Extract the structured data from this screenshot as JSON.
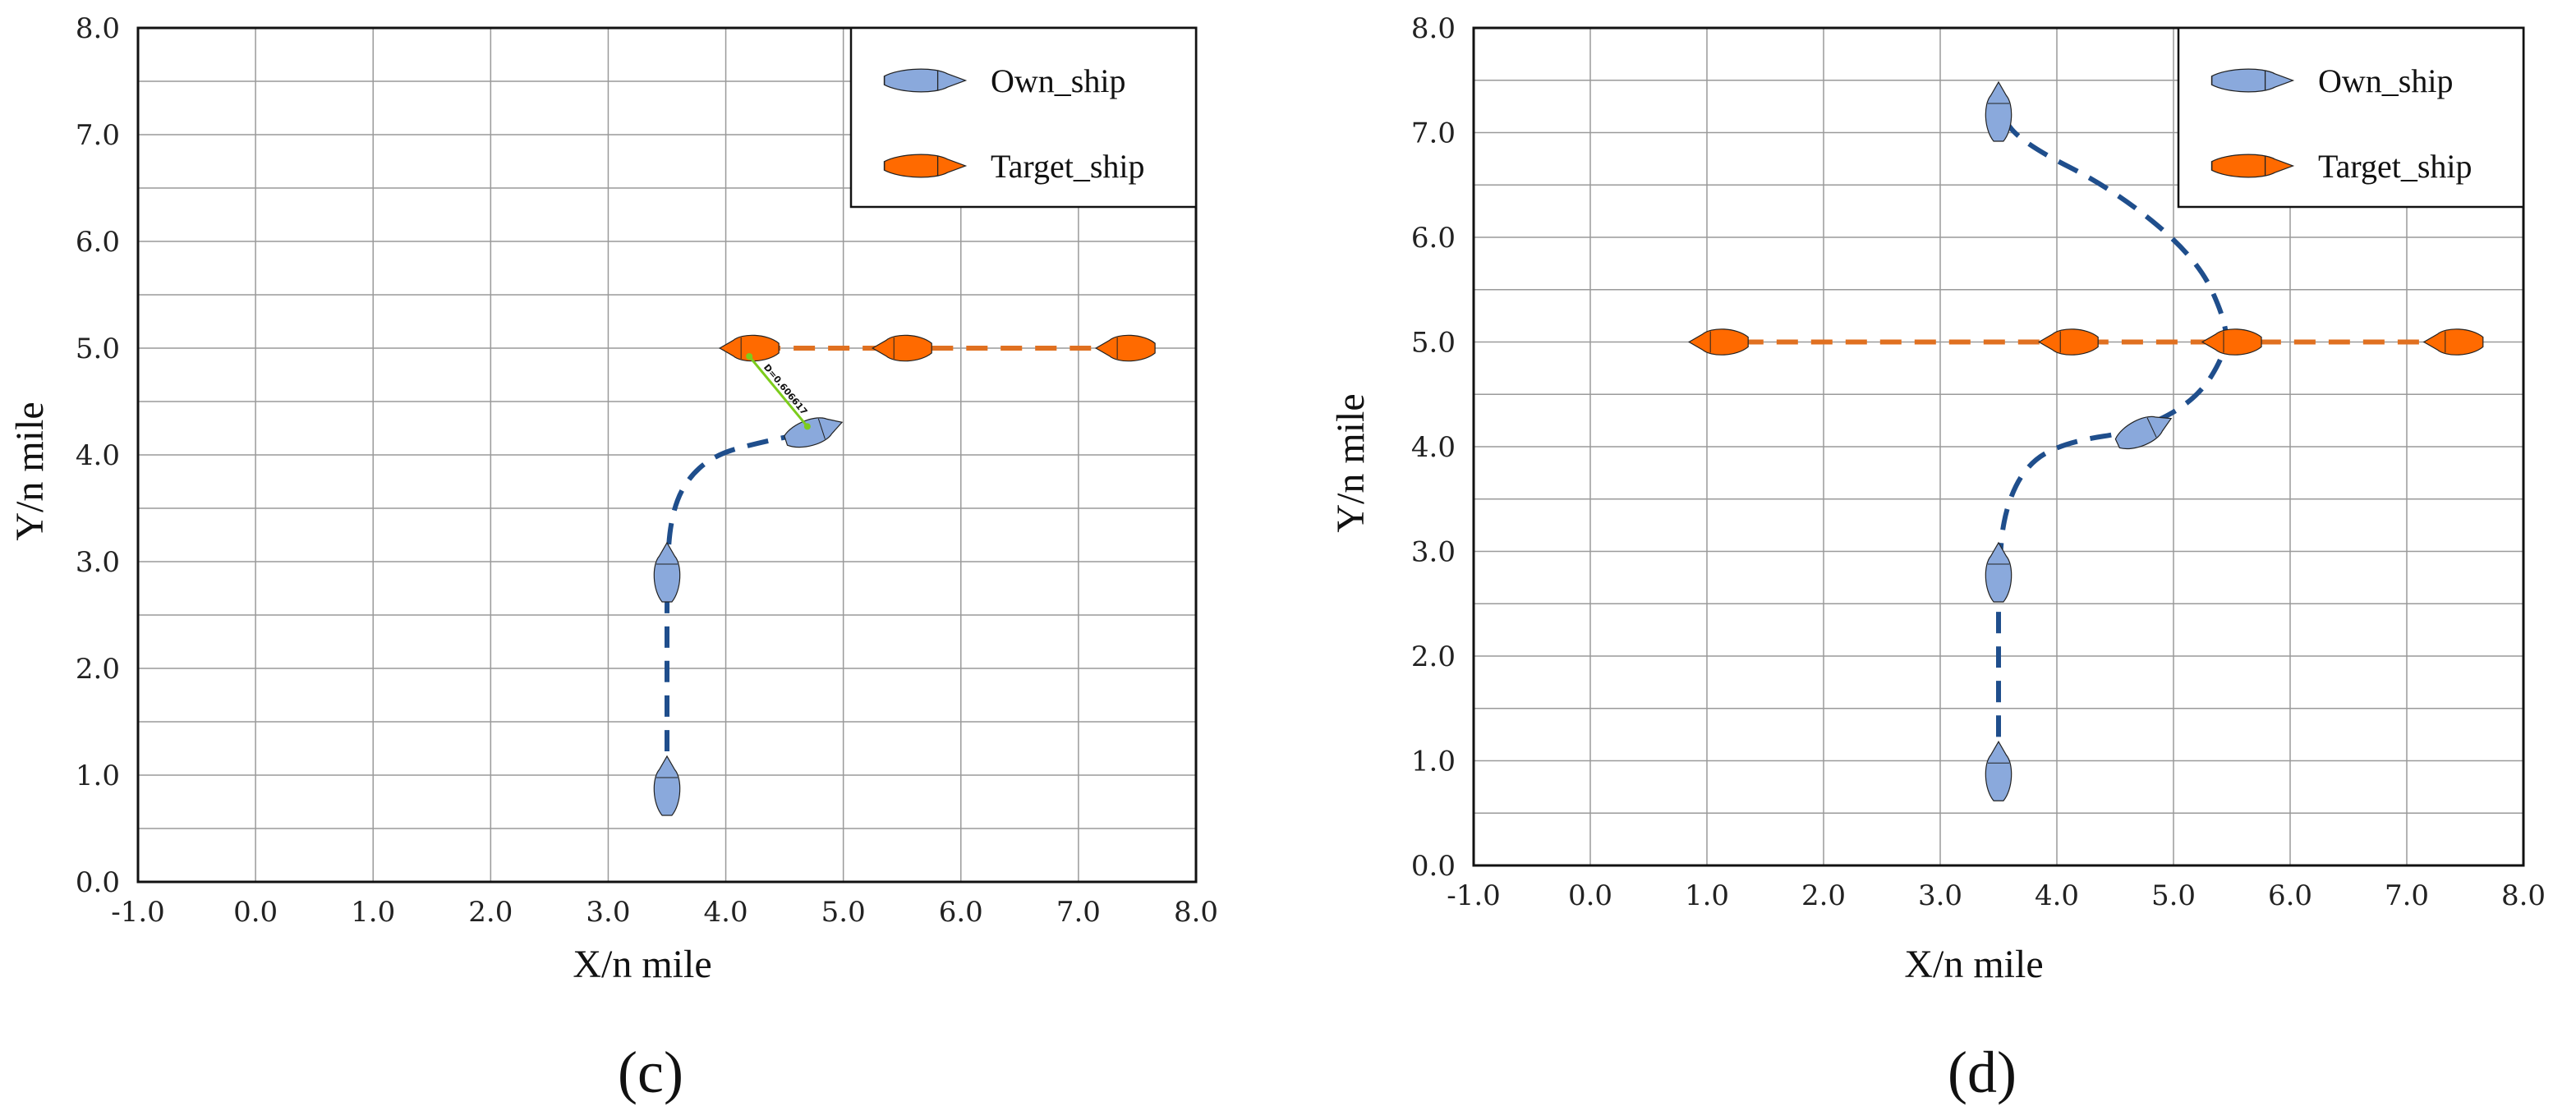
{
  "colors": {
    "own_ship_fill": "#8aa9dc",
    "own_ship_path": "#1f4e8c",
    "target_ship_fill": "#ff6a00",
    "target_ship_path": "#e07020",
    "grid": "#9a9a9a",
    "annotation_line": "#7ccc1c"
  },
  "chart_data": [
    {
      "type": "line",
      "panel_label": "(c)",
      "xlabel": "X/n mile",
      "ylabel": "Y/n mile",
      "xlim": [
        -1.0,
        8.0
      ],
      "ylim": [
        0.0,
        8.0
      ],
      "xticks": [
        "-1.0",
        "0.0",
        "1.0",
        "2.0",
        "3.0",
        "4.0",
        "5.0",
        "6.0",
        "7.0",
        "8.0"
      ],
      "yticks": [
        "0.0",
        "1.0",
        "2.0",
        "3.0",
        "4.0",
        "5.0",
        "6.0",
        "7.0",
        "8.0"
      ],
      "grid": true,
      "legend_position": "top-right",
      "legend": [
        "Own_ship",
        "Target_ship"
      ],
      "annotation": "D=0.606617",
      "series": [
        {
          "name": "Own_ship",
          "x": [
            3.5,
            3.5,
            3.5,
            3.53,
            3.65,
            3.9,
            4.3,
            4.75
          ],
          "y": [
            0.9,
            2.0,
            2.9,
            3.4,
            3.75,
            4.0,
            4.12,
            4.22
          ],
          "ship_markers": [
            {
              "x": 3.5,
              "y": 0.9,
              "heading": 90
            },
            {
              "x": 3.5,
              "y": 2.9,
              "heading": 90
            },
            {
              "x": 4.75,
              "y": 4.22,
              "heading": 18
            }
          ]
        },
        {
          "name": "Target_ship",
          "x": [
            7.4,
            4.2
          ],
          "y": [
            5.0,
            5.0
          ],
          "ship_markers": [
            {
              "x": 7.4,
              "y": 5.0,
              "heading": 180
            },
            {
              "x": 5.5,
              "y": 5.0,
              "heading": 180
            },
            {
              "x": 4.2,
              "y": 5.0,
              "heading": 180
            }
          ]
        }
      ]
    },
    {
      "type": "line",
      "panel_label": "(d)",
      "xlabel": "X/n mile",
      "ylabel": "Y/n mile",
      "xlim": [
        -1.0,
        8.0
      ],
      "ylim": [
        0.0,
        8.0
      ],
      "xticks": [
        "-1.0",
        "0.0",
        "1.0",
        "2.0",
        "3.0",
        "4.0",
        "5.0",
        "6.0",
        "7.0",
        "8.0"
      ],
      "yticks": [
        "0.0",
        "1.0",
        "2.0",
        "3.0",
        "4.0",
        "5.0",
        "6.0",
        "7.0",
        "8.0"
      ],
      "grid": true,
      "legend_position": "top-right",
      "legend": [
        "Own_ship",
        "Target_ship"
      ],
      "series": [
        {
          "name": "Own_ship",
          "x": [
            3.5,
            3.5,
            3.5,
            3.55,
            3.75,
            4.1,
            4.7,
            5.2,
            5.45,
            5.45,
            5.2,
            4.5,
            3.7,
            3.5
          ],
          "y": [
            0.9,
            2.0,
            2.8,
            3.4,
            3.85,
            4.05,
            4.15,
            4.45,
            4.9,
            5.2,
            5.8,
            6.45,
            6.9,
            7.2
          ],
          "ship_markers": [
            {
              "x": 3.5,
              "y": 0.9,
              "heading": 90
            },
            {
              "x": 3.5,
              "y": 2.8,
              "heading": 90
            },
            {
              "x": 4.75,
              "y": 4.15,
              "heading": 25
            },
            {
              "x": 3.5,
              "y": 7.2,
              "heading": 90
            }
          ]
        },
        {
          "name": "Target_ship",
          "x": [
            7.4,
            1.1
          ],
          "y": [
            5.0,
            5.0
          ],
          "ship_markers": [
            {
              "x": 7.4,
              "y": 5.0,
              "heading": 180
            },
            {
              "x": 5.5,
              "y": 5.0,
              "heading": 180
            },
            {
              "x": 4.1,
              "y": 5.0,
              "heading": 180
            },
            {
              "x": 1.1,
              "y": 5.0,
              "heading": 180
            }
          ]
        }
      ]
    }
  ]
}
